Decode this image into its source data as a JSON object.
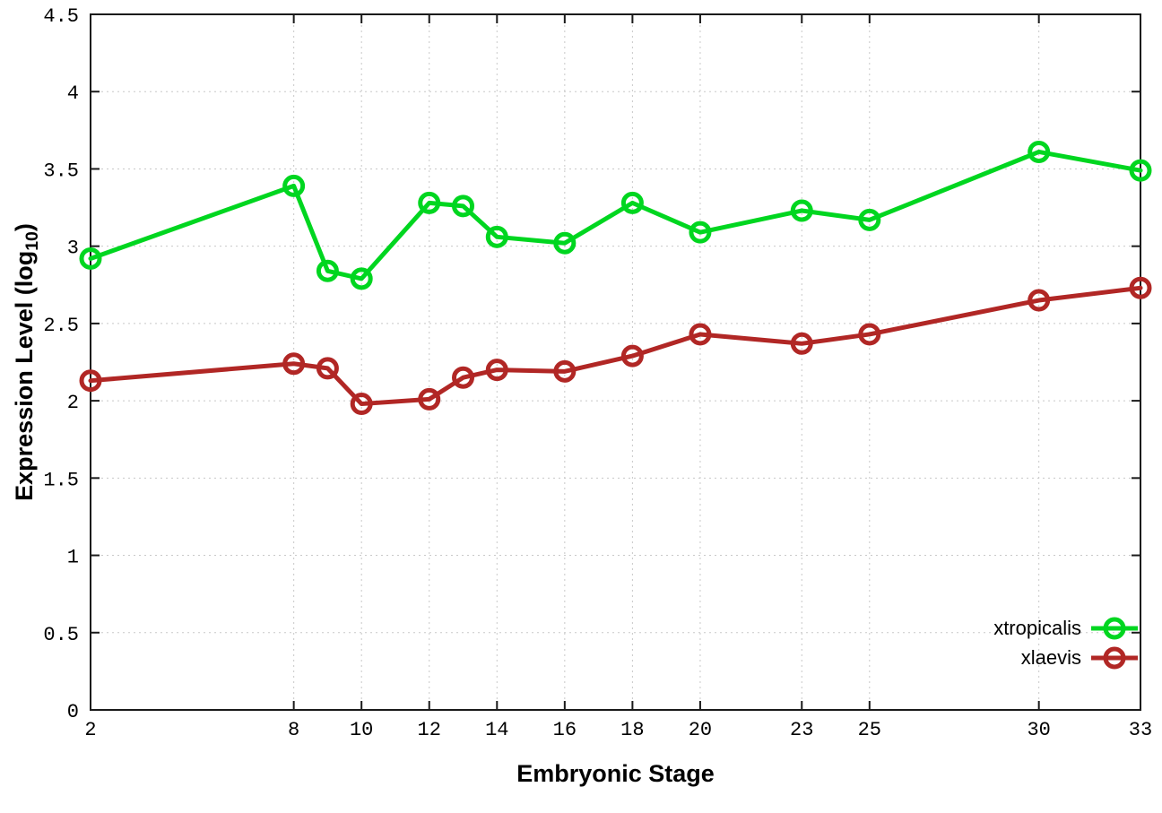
{
  "chart_data": {
    "type": "line",
    "title": "",
    "xlabel": "Embryonic Stage",
    "ylabel": "Expression Level (log10)",
    "ylabel_parts": {
      "prefix": "Expression Level (log",
      "sub": "10",
      "suffix": ")"
    },
    "xlim": [
      2,
      33
    ],
    "ylim": [
      0,
      4.5
    ],
    "grid": true,
    "legend_position": "bottom-right",
    "x": [
      2,
      8,
      9,
      10,
      12,
      13,
      14,
      16,
      18,
      20,
      23,
      25,
      30,
      33
    ],
    "xticks": [
      2,
      8,
      10,
      12,
      14,
      16,
      18,
      20,
      23,
      25,
      30,
      33
    ],
    "xtick_labels": [
      "2",
      "8",
      "10",
      "12",
      "14",
      "16",
      "18",
      "20",
      "23",
      "25",
      "30",
      "33"
    ],
    "yticks": [
      0,
      0.5,
      1,
      1.5,
      2,
      2.5,
      3,
      3.5,
      4,
      4.5
    ],
    "ytick_labels": [
      "0",
      "0.5",
      "1",
      "1.5",
      "2",
      "2.5",
      "3",
      "3.5",
      "4",
      "4.5"
    ],
    "series": [
      {
        "name": "xtropicalis",
        "color": "#00d620",
        "values": [
          2.92,
          3.39,
          2.84,
          2.79,
          3.28,
          3.26,
          3.06,
          3.02,
          3.28,
          3.09,
          3.23,
          3.17,
          3.61,
          3.49
        ]
      },
      {
        "name": "xlaevis",
        "color": "#b12725",
        "values": [
          2.13,
          2.24,
          2.21,
          1.98,
          2.01,
          2.15,
          2.2,
          2.19,
          2.29,
          2.43,
          2.37,
          2.43,
          2.65,
          2.73
        ]
      }
    ],
    "colors": {
      "border": "#1a1a1a",
      "grid": "#c8c8c8",
      "tick_text": "#000000"
    }
  }
}
